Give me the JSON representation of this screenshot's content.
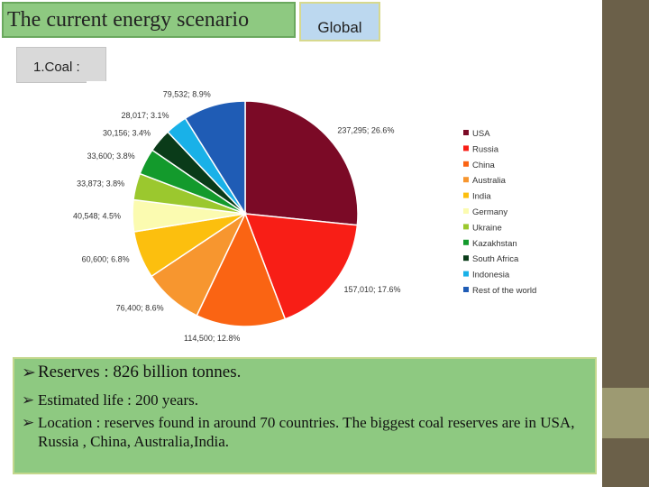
{
  "header": {
    "title": "The current energy scenario",
    "region_label": "Global"
  },
  "section": {
    "label": "1.Coal :"
  },
  "colors": {
    "accent_green": "#8ec981",
    "region_blue": "#bcd8ef",
    "sidebar": "#6b6049"
  },
  "chart_data": {
    "type": "pie",
    "title": "",
    "legend_position": "right",
    "slices": [
      {
        "name": "USA",
        "value": 237295,
        "label": "237,295; 26.6%",
        "color": "#7b0a26"
      },
      {
        "name": "Russia",
        "value": 157010,
        "label": "157,010; 17.6%",
        "color": "#f81e16"
      },
      {
        "name": "China",
        "value": 114500,
        "label": "114,500; 12.8%",
        "color": "#fa6413"
      },
      {
        "name": "Australia",
        "value": 76400,
        "label": "76,400; 8.6%",
        "color": "#f7962f"
      },
      {
        "name": "India",
        "value": 60600,
        "label": "60,600; 6.8%",
        "color": "#fcbf0e"
      },
      {
        "name": "Germany",
        "value": 40548,
        "label": "40,548; 4.5%",
        "color": "#fbfbb0"
      },
      {
        "name": "Ukraine",
        "value": 33873,
        "label": "33,873; 3.8%",
        "color": "#9bc82e"
      },
      {
        "name": "Kazakhstan",
        "value": 33600,
        "label": "33,600; 3.8%",
        "color": "#139a2c"
      },
      {
        "name": "South Africa",
        "value": 30156,
        "label": "30,156; 3.4%",
        "color": "#0a3b19"
      },
      {
        "name": "Indonesia",
        "value": 28017,
        "label": "28,017; 3.1%",
        "color": "#19b1e8"
      },
      {
        "name": "Rest of the world",
        "value": 79532,
        "label": "79,532; 8.9%",
        "color": "#1f5cb5"
      }
    ]
  },
  "info": {
    "arrow_icon": "➢",
    "reserves": "Reserves : 826 billion tonnes.",
    "life": "Estimated life : 200 years.",
    "location": "Location : reserves found in  around 70 countries. The biggest coal reserves are in USA, Russia , China, Australia,India."
  }
}
